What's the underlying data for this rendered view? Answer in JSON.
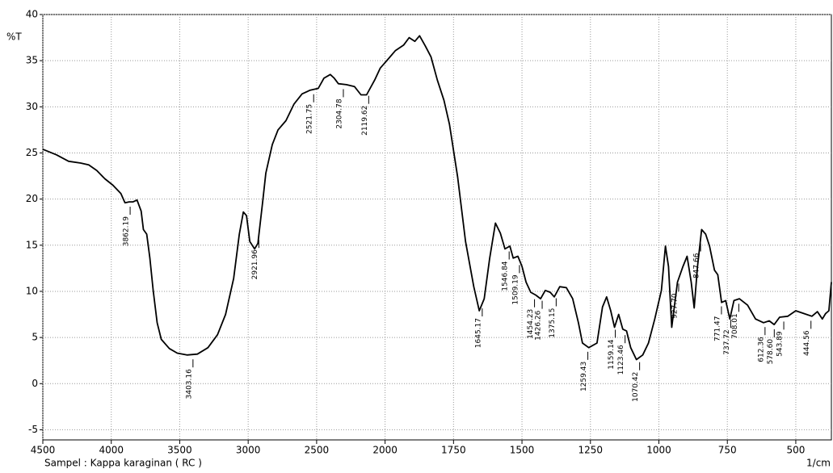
{
  "chart_data": {
    "type": "line",
    "y_label": "%T",
    "x_label": "1/cm",
    "caption": "Sampel : Kappa karaginan ( RC )",
    "color": "#000000",
    "grid": true,
    "x_scale": {
      "break": 2000,
      "ratio": 2
    },
    "xlim": [
      4500,
      370
    ],
    "ylim": [
      -6.1,
      40
    ],
    "xticks": [
      4500,
      4000,
      3500,
      3000,
      2500,
      2000,
      1750,
      1500,
      1250,
      1000,
      750,
      500
    ],
    "yticks": [
      40,
      35,
      30,
      25,
      20,
      15,
      10,
      5,
      0,
      -5
    ],
    "x": [
      4500,
      4400,
      4312,
      4224,
      4165,
      4106,
      4047,
      3988,
      3930,
      3900,
      3870,
      3841,
      3812,
      3782,
      3765,
      3741,
      3718,
      3694,
      3665,
      3635,
      3576,
      3518,
      3447,
      3371,
      3294,
      3224,
      3165,
      3106,
      3065,
      3035,
      3012,
      2988,
      2953,
      2929,
      2894,
      2871,
      2824,
      2782,
      2724,
      2665,
      2606,
      2547,
      2488,
      2447,
      2400,
      2371,
      2341,
      2282,
      2224,
      2176,
      2135,
      2076,
      2035,
      1991,
      1962,
      1932,
      1912,
      1891,
      1874,
      1853,
      1832,
      1809,
      1785,
      1765,
      1735,
      1706,
      1676,
      1656,
      1638,
      1618,
      1597,
      1579,
      1562,
      1544,
      1532,
      1515,
      1500,
      1485,
      1468,
      1450,
      1432,
      1415,
      1397,
      1382,
      1362,
      1338,
      1315,
      1294,
      1279,
      1256,
      1226,
      1206,
      1191,
      1176,
      1162,
      1147,
      1132,
      1118,
      1103,
      1082,
      1059,
      1038,
      1015,
      991,
      976,
      965,
      953,
      932,
      912,
      897,
      882,
      871,
      859,
      844,
      829,
      815,
      797,
      785,
      771,
      756,
      741,
      726,
      706,
      676,
      647,
      618,
      597,
      579,
      559,
      529,
      500,
      471,
      441,
      421,
      403,
      391,
      379,
      370
    ],
    "values": [
      25.4,
      24.8,
      24.1,
      23.9,
      23.7,
      23.1,
      22.2,
      21.5,
      20.6,
      19.6,
      19.7,
      19.7,
      19.9,
      18.7,
      16.7,
      16.2,
      13.6,
      10.1,
      6.6,
      4.8,
      3.8,
      3.3,
      3.1,
      3.2,
      3.9,
      5.3,
      7.5,
      11.4,
      16.2,
      18.6,
      18.2,
      15.4,
      14.6,
      15.2,
      19.7,
      22.8,
      25.9,
      27.5,
      28.5,
      30.3,
      31.4,
      31.8,
      32.0,
      33.1,
      33.5,
      33.1,
      32.5,
      32.4,
      32.2,
      31.3,
      31.3,
      32.9,
      34.2,
      35.1,
      36.1,
      36.7,
      37.5,
      37.1,
      37.7,
      36.6,
      35.4,
      32.9,
      30.7,
      28.1,
      22.4,
      15.4,
      10.5,
      7.9,
      9.2,
      13.6,
      17.4,
      16.3,
      14.6,
      14.9,
      13.6,
      13.8,
      12.7,
      11.0,
      9.9,
      9.6,
      9.2,
      10.1,
      9.9,
      9.4,
      10.5,
      10.4,
      9.2,
      6.6,
      4.4,
      3.9,
      4.4,
      8.3,
      9.4,
      7.9,
      6.1,
      7.5,
      5.9,
      5.7,
      3.9,
      2.6,
      3.1,
      4.4,
      7.0,
      10.1,
      14.9,
      12.7,
      6.1,
      11.0,
      12.7,
      13.8,
      11.0,
      8.2,
      12.7,
      16.7,
      16.2,
      14.9,
      12.3,
      11.8,
      8.8,
      9.0,
      7.0,
      9.0,
      9.2,
      8.5,
      7.0,
      6.6,
      6.8,
      6.4,
      7.2,
      7.3,
      7.9,
      7.6,
      7.3,
      7.8,
      7.0,
      7.6,
      7.9,
      11.0
    ],
    "peaks": [
      {
        "value": 3862.19,
        "label": "3862.19"
      },
      {
        "value": 3403.16,
        "label": "3403.16"
      },
      {
        "value": 2921.96,
        "label": "2921.96"
      },
      {
        "value": 2521.75,
        "label": "2521.75"
      },
      {
        "value": 2304.78,
        "label": "2304.78"
      },
      {
        "value": 2119.62,
        "label": "2119.62"
      },
      {
        "value": 1645.17,
        "label": "1645.17"
      },
      {
        "value": 1546.84,
        "label": "1546.84"
      },
      {
        "value": 1509.19,
        "label": "1509.19"
      },
      {
        "value": 1454.23,
        "label": "1454.23"
      },
      {
        "value": 1426.26,
        "label": "1426.26"
      },
      {
        "value": 1375.15,
        "label": "1375.15"
      },
      {
        "value": 1259.43,
        "label": "1259.43"
      },
      {
        "value": 1159.14,
        "label": "1159.14"
      },
      {
        "value": 1123.46,
        "label": "1123.46"
      },
      {
        "value": 1070.42,
        "label": "1070.42"
      },
      {
        "value": 927.7,
        "label": "927.70"
      },
      {
        "value": 847.66,
        "label": "847.66"
      },
      {
        "value": 771.47,
        "label": "771.47"
      },
      {
        "value": 737.72,
        "label": "737.72"
      },
      {
        "value": 708.01,
        "label": "708.01"
      },
      {
        "value": 612.36,
        "label": "612.36"
      },
      {
        "value": 578.6,
        "label": "578.60"
      },
      {
        "value": 543.89,
        "label": "543.89"
      },
      {
        "value": 444.56,
        "label": "444.56"
      }
    ]
  }
}
